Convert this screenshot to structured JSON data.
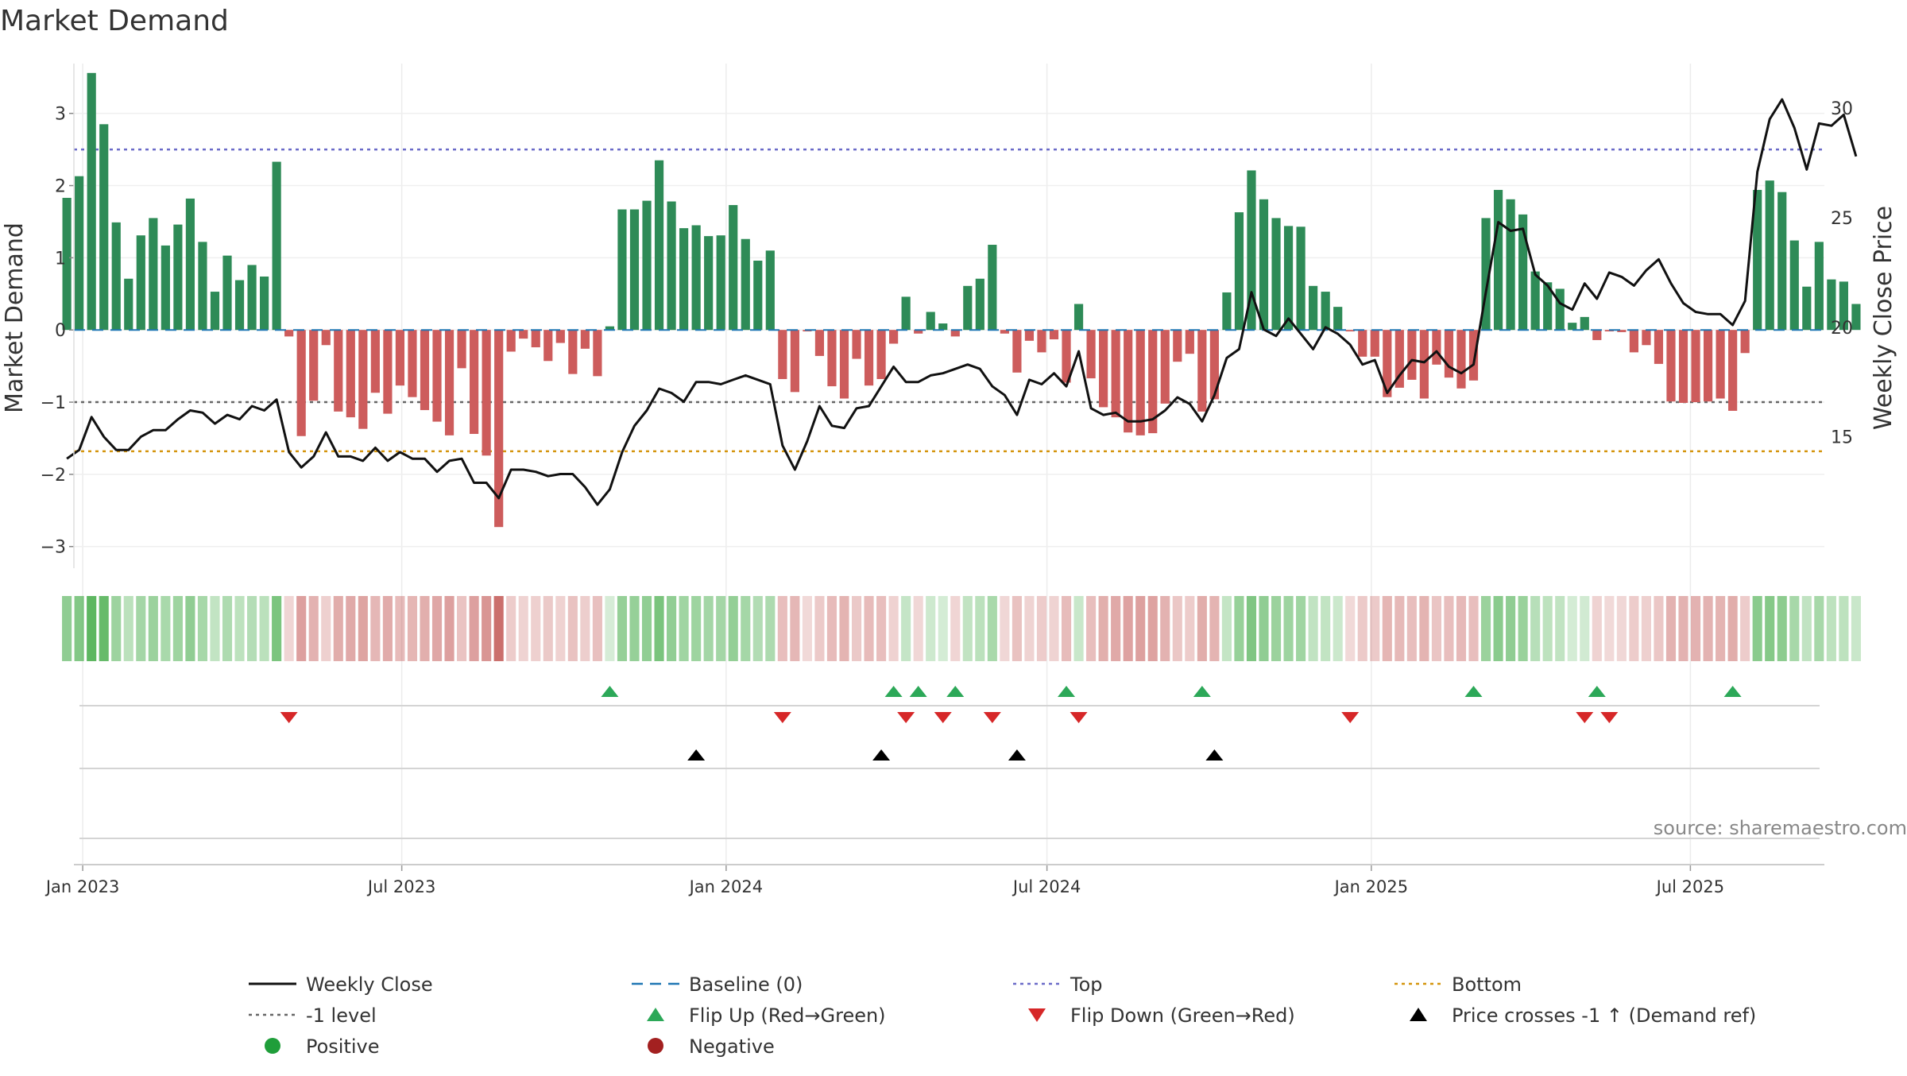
{
  "chart_data": {
    "type": "bar",
    "title": "Market Demand",
    "ylabel": "Market Demand",
    "ylabel_right": "Weekly Close Price",
    "ylim": [
      -3.3,
      3.8
    ],
    "ylim_right": [
      9.0,
      32.4
    ],
    "yticks": [
      3,
      2,
      1,
      0,
      -1,
      -2,
      -3
    ],
    "yticks_right": [
      30,
      25,
      20,
      15
    ],
    "xlim": [
      "2022-12-27",
      "2025-09-15"
    ],
    "x_ticks": [
      {
        "date": "2023-01-01",
        "label": "Jan 2023"
      },
      {
        "date": "2023-07-01",
        "label": "Jul 2023"
      },
      {
        "date": "2024-01-01",
        "label": "Jan 2024"
      },
      {
        "date": "2024-07-01",
        "label": "Jul 2024"
      },
      {
        "date": "2025-01-01",
        "label": "Jan 2025"
      },
      {
        "date": "2025-07-01",
        "label": "Jul 2025"
      }
    ],
    "levels": {
      "top": 2.5,
      "bottom": -1.68,
      "minus_one": -1,
      "baseline": 0
    },
    "start_date": "2022-12-23",
    "week_days": 7,
    "weeks": [
      {
        "demand": 1.83,
        "close": 14.0
      },
      {
        "demand": 2.13,
        "close": 14.4
      },
      {
        "demand": 3.56,
        "close": 15.9
      },
      {
        "demand": 2.85,
        "close": 15.0
      },
      {
        "demand": 1.49,
        "close": 14.4
      },
      {
        "demand": 0.71,
        "close": 14.4
      },
      {
        "demand": 1.31,
        "close": 15.0
      },
      {
        "demand": 1.55,
        "close": 15.3
      },
      {
        "demand": 1.17,
        "close": 15.3
      },
      {
        "demand": 1.46,
        "close": 15.8
      },
      {
        "demand": 1.82,
        "close": 16.2
      },
      {
        "demand": 1.22,
        "close": 16.1
      },
      {
        "demand": 0.53,
        "close": 15.6
      },
      {
        "demand": 1.03,
        "close": 16.0
      },
      {
        "demand": 0.69,
        "close": 15.8
      },
      {
        "demand": 0.9,
        "close": 16.4
      },
      {
        "demand": 0.74,
        "close": 16.2
      },
      {
        "demand": 2.33,
        "close": 16.7
      },
      {
        "demand": -0.09,
        "close": 14.3
      },
      {
        "demand": -1.47,
        "close": 13.6
      },
      {
        "demand": -0.98,
        "close": 14.1
      },
      {
        "demand": -0.21,
        "close": 15.2
      },
      {
        "demand": -1.13,
        "close": 14.1
      },
      {
        "demand": -1.21,
        "close": 14.1
      },
      {
        "demand": -1.37,
        "close": 13.9
      },
      {
        "demand": -0.87,
        "close": 14.5
      },
      {
        "demand": -1.16,
        "close": 13.9
      },
      {
        "demand": -0.77,
        "close": 14.3
      },
      {
        "demand": -0.93,
        "close": 14.0
      },
      {
        "demand": -1.11,
        "close": 14.0
      },
      {
        "demand": -1.27,
        "close": 13.4
      },
      {
        "demand": -1.46,
        "close": 13.9
      },
      {
        "demand": -0.53,
        "close": 14.0
      },
      {
        "demand": -1.44,
        "close": 12.9
      },
      {
        "demand": -1.74,
        "close": 12.9
      },
      {
        "demand": -2.73,
        "close": 12.2
      },
      {
        "demand": -0.3,
        "close": 13.5
      },
      {
        "demand": -0.12,
        "close": 13.5
      },
      {
        "demand": -0.24,
        "close": 13.4
      },
      {
        "demand": -0.43,
        "close": 13.2
      },
      {
        "demand": -0.18,
        "close": 13.3
      },
      {
        "demand": -0.61,
        "close": 13.3
      },
      {
        "demand": -0.26,
        "close": 12.7
      },
      {
        "demand": -0.64,
        "close": 11.9
      },
      {
        "demand": 0.05,
        "close": 12.6
      },
      {
        "demand": 1.67,
        "close": 14.3
      },
      {
        "demand": 1.67,
        "close": 15.5
      },
      {
        "demand": 1.79,
        "close": 16.2
      },
      {
        "demand": 2.35,
        "close": 17.2
      },
      {
        "demand": 1.78,
        "close": 17.0
      },
      {
        "demand": 1.41,
        "close": 16.6
      },
      {
        "demand": 1.45,
        "close": 17.5
      },
      {
        "demand": 1.3,
        "close": 17.5
      },
      {
        "demand": 1.31,
        "close": 17.4
      },
      {
        "demand": 1.73,
        "close": 17.6
      },
      {
        "demand": 1.26,
        "close": 17.8
      },
      {
        "demand": 0.96,
        "close": 17.6
      },
      {
        "demand": 1.1,
        "close": 17.4
      },
      {
        "demand": -0.68,
        "close": 14.6
      },
      {
        "demand": -0.86,
        "close": 13.5
      },
      {
        "demand": -0.02,
        "close": 14.8
      },
      {
        "demand": -0.36,
        "close": 16.4
      },
      {
        "demand": -0.78,
        "close": 15.5
      },
      {
        "demand": -0.95,
        "close": 15.4
      },
      {
        "demand": -0.4,
        "close": 16.3
      },
      {
        "demand": -0.77,
        "close": 16.4
      },
      {
        "demand": -0.68,
        "close": 17.3
      },
      {
        "demand": -0.19,
        "close": 18.2
      },
      {
        "demand": 0.46,
        "close": 17.5
      },
      {
        "demand": -0.05,
        "close": 17.5
      },
      {
        "demand": 0.25,
        "close": 17.8
      },
      {
        "demand": 0.09,
        "close": 17.9
      },
      {
        "demand": -0.09,
        "close": 18.1
      },
      {
        "demand": 0.61,
        "close": 18.3
      },
      {
        "demand": 0.71,
        "close": 18.1
      },
      {
        "demand": 1.18,
        "close": 17.3
      },
      {
        "demand": -0.05,
        "close": 16.9
      },
      {
        "demand": -0.59,
        "close": 16.0
      },
      {
        "demand": -0.15,
        "close": 17.6
      },
      {
        "demand": -0.31,
        "close": 17.4
      },
      {
        "demand": -0.13,
        "close": 17.9
      },
      {
        "demand": -0.73,
        "close": 17.3
      },
      {
        "demand": 0.36,
        "close": 18.9
      },
      {
        "demand": -0.67,
        "close": 16.3
      },
      {
        "demand": -1.07,
        "close": 16.0
      },
      {
        "demand": -1.21,
        "close": 16.1
      },
      {
        "demand": -1.42,
        "close": 15.7
      },
      {
        "demand": -1.46,
        "close": 15.7
      },
      {
        "demand": -1.43,
        "close": 15.8
      },
      {
        "demand": -1.02,
        "close": 16.2
      },
      {
        "demand": -0.44,
        "close": 16.8
      },
      {
        "demand": -0.33,
        "close": 16.5
      },
      {
        "demand": -1.13,
        "close": 15.7
      },
      {
        "demand": -0.96,
        "close": 16.9
      },
      {
        "demand": 0.52,
        "close": 18.6
      },
      {
        "demand": 1.63,
        "close": 19.0
      },
      {
        "demand": 2.21,
        "close": 21.6
      },
      {
        "demand": 1.81,
        "close": 19.9
      },
      {
        "demand": 1.55,
        "close": 19.6
      },
      {
        "demand": 1.44,
        "close": 20.4
      },
      {
        "demand": 1.43,
        "close": 19.7
      },
      {
        "demand": 0.61,
        "close": 19.0
      },
      {
        "demand": 0.53,
        "close": 20.0
      },
      {
        "demand": 0.32,
        "close": 19.7
      },
      {
        "demand": -0.02,
        "close": 19.2
      },
      {
        "demand": -0.37,
        "close": 18.3
      },
      {
        "demand": -0.37,
        "close": 18.5
      },
      {
        "demand": -0.93,
        "close": 17.0
      },
      {
        "demand": -0.8,
        "close": 17.8
      },
      {
        "demand": -0.69,
        "close": 18.5
      },
      {
        "demand": -0.95,
        "close": 18.4
      },
      {
        "demand": -0.48,
        "close": 18.9
      },
      {
        "demand": -0.66,
        "close": 18.2
      },
      {
        "demand": -0.81,
        "close": 17.9
      },
      {
        "demand": -0.7,
        "close": 18.3
      },
      {
        "demand": 1.55,
        "close": 21.6
      },
      {
        "demand": 1.94,
        "close": 24.8
      },
      {
        "demand": 1.81,
        "close": 24.4
      },
      {
        "demand": 1.6,
        "close": 24.5
      },
      {
        "demand": 0.81,
        "close": 22.4
      },
      {
        "demand": 0.66,
        "close": 21.9
      },
      {
        "demand": 0.57,
        "close": 21.1
      },
      {
        "demand": 0.1,
        "close": 20.8
      },
      {
        "demand": 0.18,
        "close": 22.0
      },
      {
        "demand": -0.14,
        "close": 21.3
      },
      {
        "demand": -0.02,
        "close": 22.5
      },
      {
        "demand": -0.03,
        "close": 22.3
      },
      {
        "demand": -0.31,
        "close": 21.9
      },
      {
        "demand": -0.21,
        "close": 22.6
      },
      {
        "demand": -0.47,
        "close": 23.1
      },
      {
        "demand": -0.99,
        "close": 22.0
      },
      {
        "demand": -1.01,
        "close": 21.1
      },
      {
        "demand": -1.0,
        "close": 20.7
      },
      {
        "demand": -0.99,
        "close": 20.6
      },
      {
        "demand": -0.95,
        "close": 20.6
      },
      {
        "demand": -1.12,
        "close": 20.1
      },
      {
        "demand": -0.32,
        "close": 21.2
      },
      {
        "demand": 1.94,
        "close": 27.1
      },
      {
        "demand": 2.07,
        "close": 29.5
      },
      {
        "demand": 1.91,
        "close": 30.4
      },
      {
        "demand": 1.24,
        "close": 29.1
      },
      {
        "demand": 0.6,
        "close": 27.2
      },
      {
        "demand": 1.22,
        "close": 29.3
      },
      {
        "demand": 0.7,
        "close": 29.2
      },
      {
        "demand": 0.67,
        "close": 29.7
      },
      {
        "demand": 0.36,
        "close": 27.8
      }
    ],
    "flip_up_weeks": [
      44,
      67,
      69,
      72,
      81,
      92,
      114,
      124,
      135
    ],
    "flip_down_weeks": [
      18,
      58,
      68,
      71,
      75,
      82,
      104,
      123,
      125
    ],
    "price_cross_weeks": [
      51,
      66,
      77,
      93
    ],
    "colors": {
      "positive": "#2e8b57",
      "negative": "#cd5c5c",
      "close_line": "#111111",
      "baseline": "#1f77b4",
      "top": "#6a6ac8",
      "bottom": "#d4940c",
      "minus_one": "#666666",
      "flip_up": "#2ca858",
      "flip_down": "#d62728",
      "cross": "#000000",
      "strip_pos": "#4caf50",
      "strip_neg": "#c0504d",
      "legend_positive": "#1f9e3a",
      "legend_negative": "#a32020"
    }
  },
  "source_text": "source: sharemaestro.com",
  "legend": [
    {
      "label": "Weekly Close",
      "kind": "line-solid",
      "color_key": "close_line"
    },
    {
      "label": "Baseline (0)",
      "kind": "line-dash",
      "color_key": "baseline"
    },
    {
      "label": "Top",
      "kind": "line-dot",
      "color_key": "top"
    },
    {
      "label": "Bottom",
      "kind": "line-dot",
      "color_key": "bottom"
    },
    {
      "label": "-1 level",
      "kind": "line-dot",
      "color_key": "minus_one"
    },
    {
      "label": "Flip Up (Red→Green)",
      "kind": "tri-up",
      "color_key": "flip_up"
    },
    {
      "label": "Flip Down (Green→Red)",
      "kind": "tri-down",
      "color_key": "flip_down"
    },
    {
      "label": "Price crosses -1 ↑ (Demand ref)",
      "kind": "tri-up",
      "color_key": "cross"
    },
    {
      "label": "Positive",
      "kind": "dot",
      "color_key": "legend_positive"
    },
    {
      "label": "Negative",
      "kind": "dot",
      "color_key": "legend_negative"
    }
  ]
}
